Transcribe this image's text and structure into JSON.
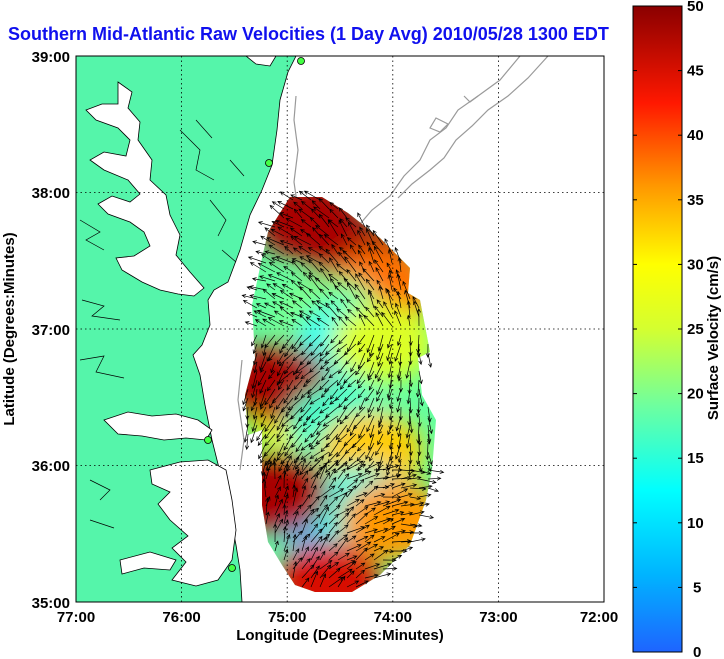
{
  "title": "Southern Mid-Atlantic Raw Velocities (1 Day Avg) 2010/05/28 1300 EDT",
  "map": {
    "xlabel": "Longitude (Degrees:Minutes)",
    "ylabel": "Latitude (Degrees:Minutes)",
    "lon_range": [
      -77,
      -72
    ],
    "lat_range": [
      35,
      39
    ],
    "lon_ticks": [
      "77:00",
      "76:00",
      "75:00",
      "74:00",
      "73:00",
      "72:00"
    ],
    "lat_ticks": [
      "39:00",
      "38:00",
      "37:00",
      "36:00",
      "35:00"
    ],
    "grid": "dotted",
    "land_color": "#55f5aa",
    "water_color": "#ffffff",
    "bathymetry_color": "#9a9a9a"
  },
  "colorbar": {
    "title": "Surface Velocity (cm/s)",
    "min": 0,
    "max": 50,
    "labels": [
      "50",
      "45",
      "40",
      "35",
      "30",
      "25",
      "20",
      "15",
      "10",
      "5",
      "0"
    ],
    "colormap": "jet"
  },
  "chart_data": {
    "type": "heatmap",
    "title": "Southern Mid-Atlantic Raw Velocities (1 Day Avg) 2010/05/28 1300 EDT",
    "xlabel": "Longitude (Degrees:Minutes)",
    "ylabel": "Latitude (Degrees:Minutes)",
    "xlim": [
      -77,
      -72
    ],
    "ylim": [
      35,
      39
    ],
    "colorbar_label": "Surface Velocity (cm/s)",
    "value_range": [
      0,
      50
    ],
    "regions": [
      {
        "lon": -74.8,
        "lat": 37.8,
        "speed": 48
      },
      {
        "lon": -74.3,
        "lat": 37.5,
        "speed": 48
      },
      {
        "lon": -74.1,
        "lat": 37.3,
        "speed": 38
      },
      {
        "lon": -74.6,
        "lat": 37.1,
        "speed": 20
      },
      {
        "lon": -74.4,
        "lat": 36.9,
        "speed": 13
      },
      {
        "lon": -74.1,
        "lat": 36.9,
        "speed": 26
      },
      {
        "lon": -74.9,
        "lat": 36.4,
        "speed": 30
      },
      {
        "lon": -75.1,
        "lat": 36.6,
        "speed": 48
      },
      {
        "lon": -74.5,
        "lat": 36.3,
        "speed": 16
      },
      {
        "lon": -74.2,
        "lat": 36.1,
        "speed": 33
      },
      {
        "lon": -74.6,
        "lat": 35.6,
        "speed": 7
      },
      {
        "lon": -74.3,
        "lat": 35.7,
        "speed": 14
      },
      {
        "lon": -74.0,
        "lat": 35.6,
        "speed": 36
      },
      {
        "lon": -75.1,
        "lat": 35.8,
        "speed": 48
      },
      {
        "lon": -74.6,
        "lat": 35.15,
        "speed": 45
      }
    ]
  }
}
